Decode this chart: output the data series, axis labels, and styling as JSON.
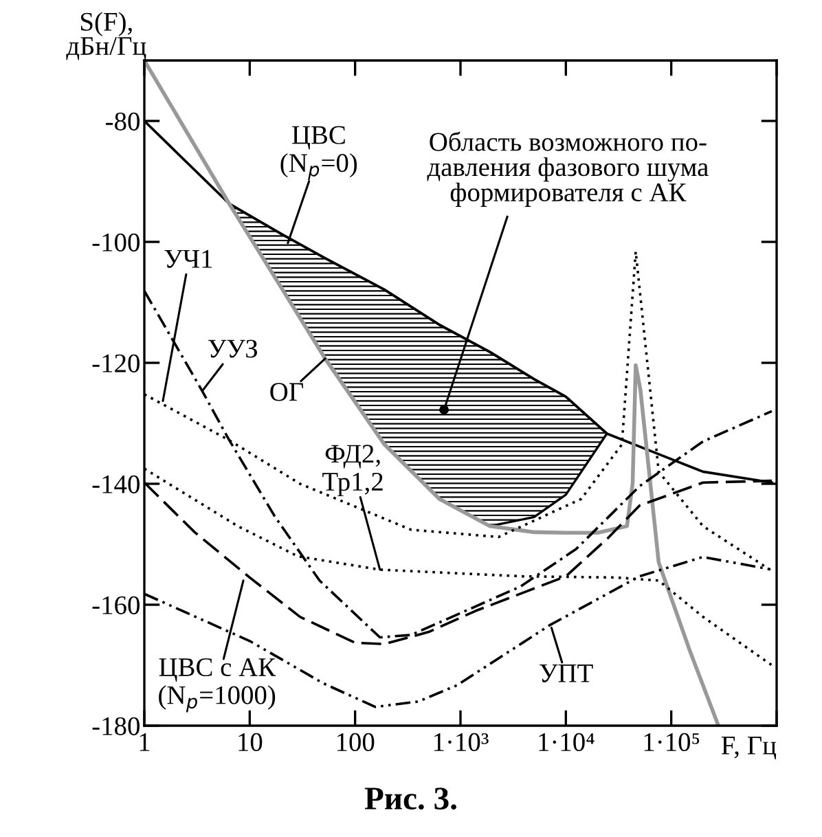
{
  "chart_data": {
    "type": "line",
    "xlabel": "F, Гц",
    "ylabel": "S(F),\nдБн/Гц",
    "log": "x",
    "xlim": [
      1,
      1000000
    ],
    "ylim": [
      -180,
      -70
    ],
    "xticks": [
      1,
      10,
      100,
      {
        "value": 1000,
        "label": "1·10³"
      },
      {
        "value": 10000,
        "label": "1·10⁴"
      },
      {
        "value": 100000,
        "label": "1·10⁵"
      },
      {
        "value": 1000000,
        "label": null
      }
    ],
    "yticks": [
      -180,
      -160,
      -140,
      -120,
      -100,
      -80
    ],
    "grid": false,
    "series": [
      {
        "color": "#000000",
        "line_style": "solid",
        "x": [
          1,
          6.4,
          20,
          52,
          190,
          630,
          1900,
          5000,
          10000,
          24500,
          76000,
          200000,
          900000
        ],
        "values": [
          -80,
          -93.7,
          -98.7,
          -102.7,
          -107.9,
          -113.7,
          -118.2,
          -122.7,
          -125.6,
          -131.7,
          -135.1,
          -138,
          -139.8
        ],
        "lower": [
          null,
          -93.7,
          -107.6,
          -119.3,
          -133.5,
          -142.5,
          -147,
          -145.5,
          -141.8,
          -131.7,
          null,
          null,
          null
        ],
        "upper": [
          null,
          -93.7,
          -98.7,
          -102.7,
          -107.9,
          -113.7,
          -118.2,
          -122.7,
          -125.6,
          -131.7,
          null,
          null,
          null
        ]
      },
      {
        "color": "#999999",
        "line_style": "solid",
        "x": [
          1,
          6.4,
          20,
          52,
          190,
          630,
          1900,
          5000,
          10000,
          20000,
          38000,
          43000,
          46000,
          51000,
          76000,
          150000,
          280000
        ],
        "values": [
          -70,
          -93.7,
          -107.6,
          -119.3,
          -133.5,
          -142.5,
          -147,
          -148,
          -148.1,
          -148.1,
          -147,
          -140,
          -120.4,
          -124.5,
          -153,
          -167.6,
          -180
        ]
      },
      {
        "color": "#000000",
        "line_style": "dotted",
        "x": [
          1,
          6.4,
          30,
          340,
          2300,
          14000,
          34000,
          46000,
          76000,
          200000,
          900000
        ],
        "values": [
          -125.2,
          -132.8,
          -140,
          -147.6,
          -148.8,
          -142.5,
          -133.5,
          -101.6,
          -138,
          -147,
          -154.4
        ]
      },
      {
        "color": "#000000",
        "line_style": "dashdot",
        "x": [
          1,
          3.5,
          6.4,
          17.3,
          46,
          172,
          340,
          3700,
          12500,
          50000,
          200000,
          900000
        ],
        "values": [
          -108.1,
          -124.5,
          -132.8,
          -145.4,
          -156,
          -165.4,
          -165,
          -157,
          -150.8,
          -140.4,
          -133,
          -128
        ]
      },
      {
        "color": "#000000",
        "line_style": "dotted",
        "x": [
          1,
          7.7,
          28.7,
          172,
          3800,
          30000,
          76000,
          200000,
          900000
        ],
        "values": [
          -137.5,
          -147,
          -152,
          -154.2,
          -155.3,
          -155.5,
          -156,
          -162,
          -170
        ]
      },
      {
        "color": "#000000",
        "line_style": "dashed",
        "x": [
          1,
          3,
          10,
          30,
          100,
          190,
          500,
          1400,
          10000,
          25000,
          50000,
          200000,
          900000
        ],
        "values": [
          -139.8,
          -148,
          -155.5,
          -162,
          -166.3,
          -166.5,
          -164.5,
          -161,
          -155.3,
          -149,
          -143.6,
          -139.8,
          -139.5
        ]
      },
      {
        "color": "#000000",
        "line_style": "dashdotdot",
        "x": [
          1,
          10,
          50,
          155,
          400,
          930,
          7000,
          50000,
          200000,
          900000
        ],
        "values": [
          -158.2,
          -166,
          -173,
          -176.9,
          -176,
          -173.3,
          -163.4,
          -155.3,
          -152.1,
          -154.2
        ]
      }
    ],
    "annotations": [
      {
        "text": "ЦВС\n(N$_{p}$=0)",
        "x": 23,
        "y": -100.2
      },
      {
        "text": "УЧ1",
        "x": 1.5,
        "y": -126.3
      },
      {
        "text": "УУЗ",
        "x": 3.6,
        "y": -124.5
      },
      {
        "text": "ОГ",
        "x": 52,
        "y": -119.3
      },
      {
        "text": "ФД2,\nТр1,2",
        "x": 172,
        "y": -154.2
      },
      {
        "text": "ЦВС с АК\n(N$_{p}$=1000)",
        "x": 8.7,
        "y": -156
      },
      {
        "text": "УПТ",
        "x": 7300,
        "y": -163.8
      },
      "Область возможного по-\nдавления фазового шума\nформирователя с АК",
      "Рис. 3."
    ]
  }
}
